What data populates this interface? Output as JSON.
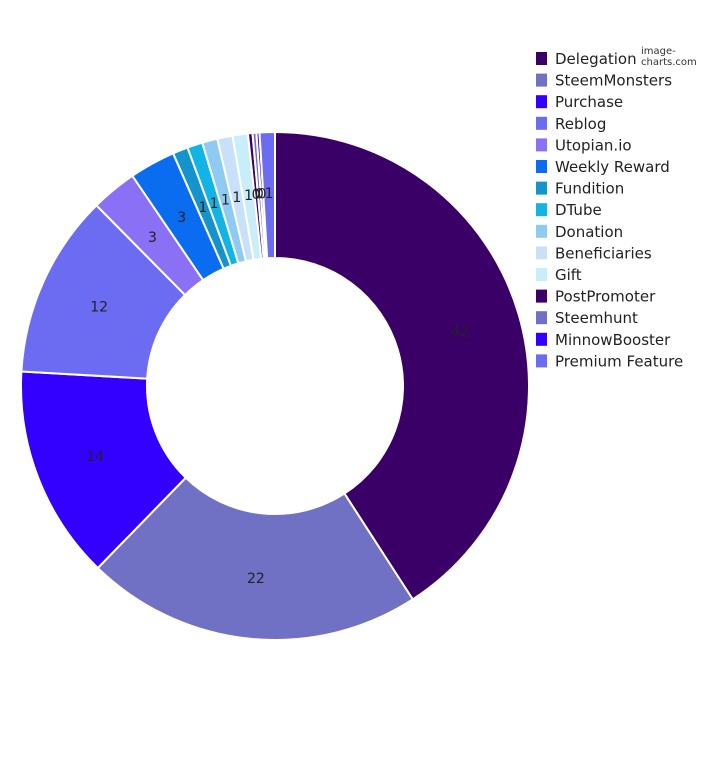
{
  "watermark": "image-charts.com",
  "chart_data": {
    "type": "pie",
    "donut": true,
    "slices": [
      {
        "label": "Delegation",
        "value": 42,
        "display": "42",
        "color": "#3a0068"
      },
      {
        "label": "SteemMonsters",
        "value": 22,
        "display": "22",
        "color": "#7070c4"
      },
      {
        "label": "Purchase",
        "value": 14,
        "display": "14",
        "color": "#3300ff"
      },
      {
        "label": "Reblog",
        "value": 12,
        "display": "12",
        "color": "#6c6cf2"
      },
      {
        "label": "Utopian.io",
        "value": 3,
        "display": "3",
        "color": "#8a70f5"
      },
      {
        "label": "Weekly Reward",
        "value": 3,
        "display": "3",
        "color": "#0a6df0"
      },
      {
        "label": "Fundition",
        "value": 1,
        "display": "1",
        "color": "#1493cc"
      },
      {
        "label": "DTube",
        "value": 1,
        "display": "1",
        "color": "#12b4e6"
      },
      {
        "label": "Donation",
        "value": 1,
        "display": "1",
        "color": "#8fcaf2"
      },
      {
        "label": "Beneficiaries",
        "value": 1,
        "display": "1",
        "color": "#c8e0f8"
      },
      {
        "label": "Gift",
        "value": 1,
        "display": "1",
        "color": "#c8eefa"
      },
      {
        "label": "PostPromoter",
        "value": 0.3,
        "display": "0",
        "color": "#3a0068"
      },
      {
        "label": "Steemhunt",
        "value": 0.25,
        "display": "0",
        "color": "#7070c4"
      },
      {
        "label": "MinnowBooster",
        "value": 0.2,
        "display": "0",
        "color": "#3300ff"
      },
      {
        "label": "Premium Feature",
        "value": 1.0,
        "display": "1",
        "color": "#6c6cf2"
      }
    ],
    "legend_position": "top-right"
  }
}
